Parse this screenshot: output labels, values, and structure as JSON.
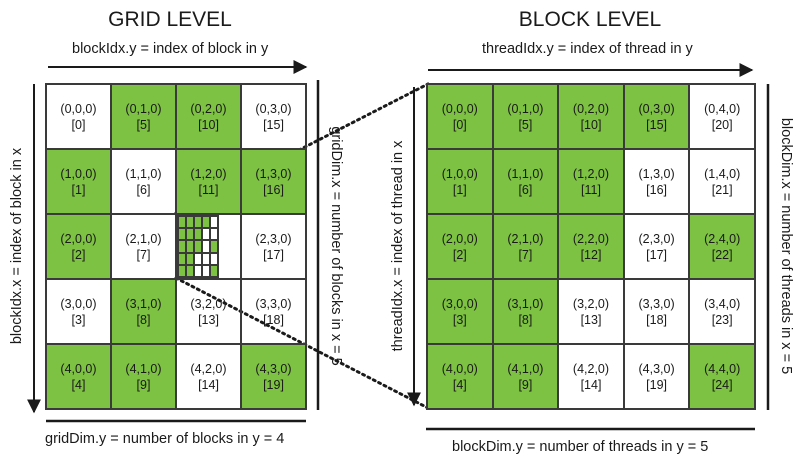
{
  "grid_title": "GRID LEVEL",
  "block_title": "BLOCK LEVEL",
  "grid_labels": {
    "top": "blockIdx.y = index of block in y",
    "left": "blockIdx.x = index of block in x",
    "right": "gridDim.x = number of blocks in x = 5",
    "bottom": "gridDim.y = number of blocks in y = 4"
  },
  "block_labels": {
    "top": "threadIdx.y = index of thread in y",
    "left": "threadIdx.x = index of thread in x",
    "right": "blockDim.x = number of threads in x = 5",
    "bottom": "blockDim.y = number of threads in y = 5"
  },
  "grid_cells": [
    {
      "coord": "(0,0,0)",
      "index": "[0]",
      "on": false
    },
    {
      "coord": "(0,1,0)",
      "index": "[5]",
      "on": true
    },
    {
      "coord": "(0,2,0)",
      "index": "[10]",
      "on": true
    },
    {
      "coord": "(0,3,0)",
      "index": "[15]",
      "on": false
    },
    {
      "coord": "(1,0,0)",
      "index": "[1]",
      "on": true
    },
    {
      "coord": "(1,1,0)",
      "index": "[6]",
      "on": false
    },
    {
      "coord": "(1,2,0)",
      "index": "[11]",
      "on": true
    },
    {
      "coord": "(1,3,0)",
      "index": "[16]",
      "on": true
    },
    {
      "coord": "(2,0,0)",
      "index": "[2]",
      "on": true
    },
    {
      "coord": "(2,1,0)",
      "index": "[7]",
      "on": false
    },
    {
      "coord": "",
      "index": "",
      "on": false,
      "mini": true
    },
    {
      "coord": "(2,3,0)",
      "index": "[17]",
      "on": false
    },
    {
      "coord": "(3,0,0)",
      "index": "[3]",
      "on": false
    },
    {
      "coord": "(3,1,0)",
      "index": "[8]",
      "on": true
    },
    {
      "coord": "(3,2,0)",
      "index": "[13]",
      "on": false
    },
    {
      "coord": "(3,3,0)",
      "index": "[18]",
      "on": false
    },
    {
      "coord": "(4,0,0)",
      "index": "[4]",
      "on": true
    },
    {
      "coord": "(4,1,0)",
      "index": "[9]",
      "on": true
    },
    {
      "coord": "(4,2,0)",
      "index": "[14]",
      "on": false
    },
    {
      "coord": "(4,3,0)",
      "index": "[19]",
      "on": true
    }
  ],
  "block_cells": [
    {
      "coord": "(0,0,0)",
      "index": "[0]",
      "on": true
    },
    {
      "coord": "(0,1,0)",
      "index": "[5]",
      "on": true
    },
    {
      "coord": "(0,2,0)",
      "index": "[10]",
      "on": true
    },
    {
      "coord": "(0,3,0)",
      "index": "[15]",
      "on": true
    },
    {
      "coord": "(0,4,0)",
      "index": "[20]",
      "on": false
    },
    {
      "coord": "(1,0,0)",
      "index": "[1]",
      "on": true
    },
    {
      "coord": "(1,1,0)",
      "index": "[6]",
      "on": true
    },
    {
      "coord": "(1,2,0)",
      "index": "[11]",
      "on": true
    },
    {
      "coord": "(1,3,0)",
      "index": "[16]",
      "on": false
    },
    {
      "coord": "(1,4,0)",
      "index": "[21]",
      "on": false
    },
    {
      "coord": "(2,0,0)",
      "index": "[2]",
      "on": true
    },
    {
      "coord": "(2,1,0)",
      "index": "[7]",
      "on": true
    },
    {
      "coord": "(2,2,0)",
      "index": "[12]",
      "on": true
    },
    {
      "coord": "(2,3,0)",
      "index": "[17]",
      "on": false
    },
    {
      "coord": "(2,4,0)",
      "index": "[22]",
      "on": true
    },
    {
      "coord": "(3,0,0)",
      "index": "[3]",
      "on": true
    },
    {
      "coord": "(3,1,0)",
      "index": "[8]",
      "on": true
    },
    {
      "coord": "(3,2,0)",
      "index": "[13]",
      "on": false
    },
    {
      "coord": "(3,3,0)",
      "index": "[18]",
      "on": false
    },
    {
      "coord": "(3,4,0)",
      "index": "[23]",
      "on": false
    },
    {
      "coord": "(4,0,0)",
      "index": "[4]",
      "on": true
    },
    {
      "coord": "(4,1,0)",
      "index": "[9]",
      "on": true
    },
    {
      "coord": "(4,2,0)",
      "index": "[14]",
      "on": false
    },
    {
      "coord": "(4,3,0)",
      "index": "[19]",
      "on": false
    },
    {
      "coord": "(4,4,0)",
      "index": "[24]",
      "on": true
    }
  ],
  "mini_block_on": [
    true,
    true,
    true,
    true,
    false,
    true,
    true,
    true,
    false,
    false,
    true,
    true,
    true,
    false,
    true,
    true,
    true,
    false,
    false,
    false,
    true,
    true,
    false,
    false,
    true
  ],
  "colors": {
    "active": "#7dc242",
    "inactive": "#ffffff",
    "border": "#3a3a3a"
  }
}
